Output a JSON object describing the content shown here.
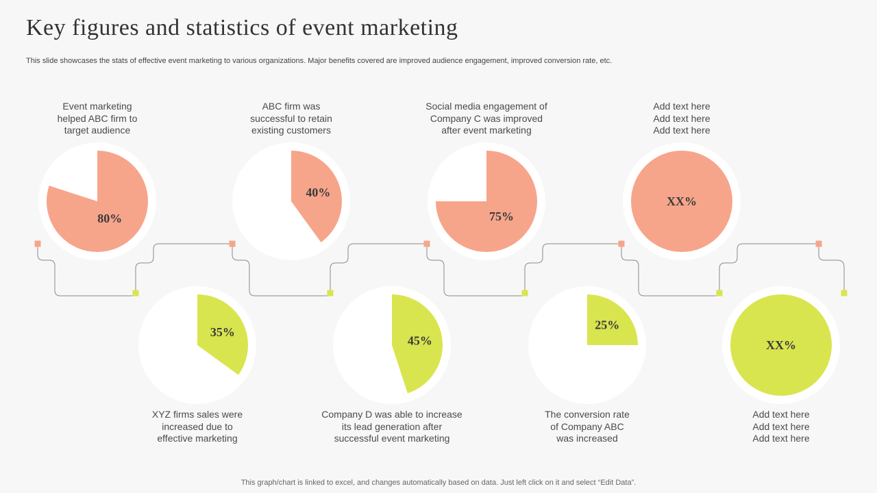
{
  "title": "Key figures and statistics of  event marketing",
  "subtitle": "This slide showcases the stats of effective  event marketing to various organizations. Major benefits covered are improved audience engagement, improved conversion rate, etc.",
  "footer": "This graph/chart is linked to excel,  and changes automatically based on data. Just left click on it and select “Edit Data”.",
  "colors": {
    "top": "#f6a58b",
    "bottom": "#d9e54e",
    "ring": "#ffffff",
    "connector": "#8a8a8a"
  },
  "chart_data": {
    "type": "pie",
    "pies": [
      {
        "value": 80,
        "label": "80%",
        "row": "top",
        "caption": [
          "Event marketing",
          "helped ABC firm to",
          "target audience"
        ]
      },
      {
        "value": 35,
        "label": "35%",
        "row": "bottom",
        "caption": [
          "XYZ  firms sales were",
          "increased due to",
          "effective marketing"
        ]
      },
      {
        "value": 40,
        "label": "40%",
        "row": "top",
        "caption": [
          "ABC firm was",
          "successful to retain",
          "existing customers"
        ]
      },
      {
        "value": 45,
        "label": "45%",
        "row": "bottom",
        "caption": [
          "Company D was able to increase",
          "its lead generation  after",
          "successful event marketing"
        ]
      },
      {
        "value": 75,
        "label": "75%",
        "row": "top",
        "caption": [
          "Social media engagement of",
          "Company C was improved",
          "after event marketing"
        ]
      },
      {
        "value": 25,
        "label": "25%",
        "row": "bottom",
        "caption": [
          "The conversion rate",
          "of Company ABC",
          "was increased"
        ]
      },
      {
        "value": 100,
        "label": "XX%",
        "row": "top",
        "caption": [
          "Add text here",
          "Add text here",
          "Add text here"
        ]
      },
      {
        "value": 100,
        "label": "XX%",
        "row": "bottom",
        "caption": [
          "Add text here",
          "Add text here",
          "Add text here"
        ]
      }
    ]
  }
}
